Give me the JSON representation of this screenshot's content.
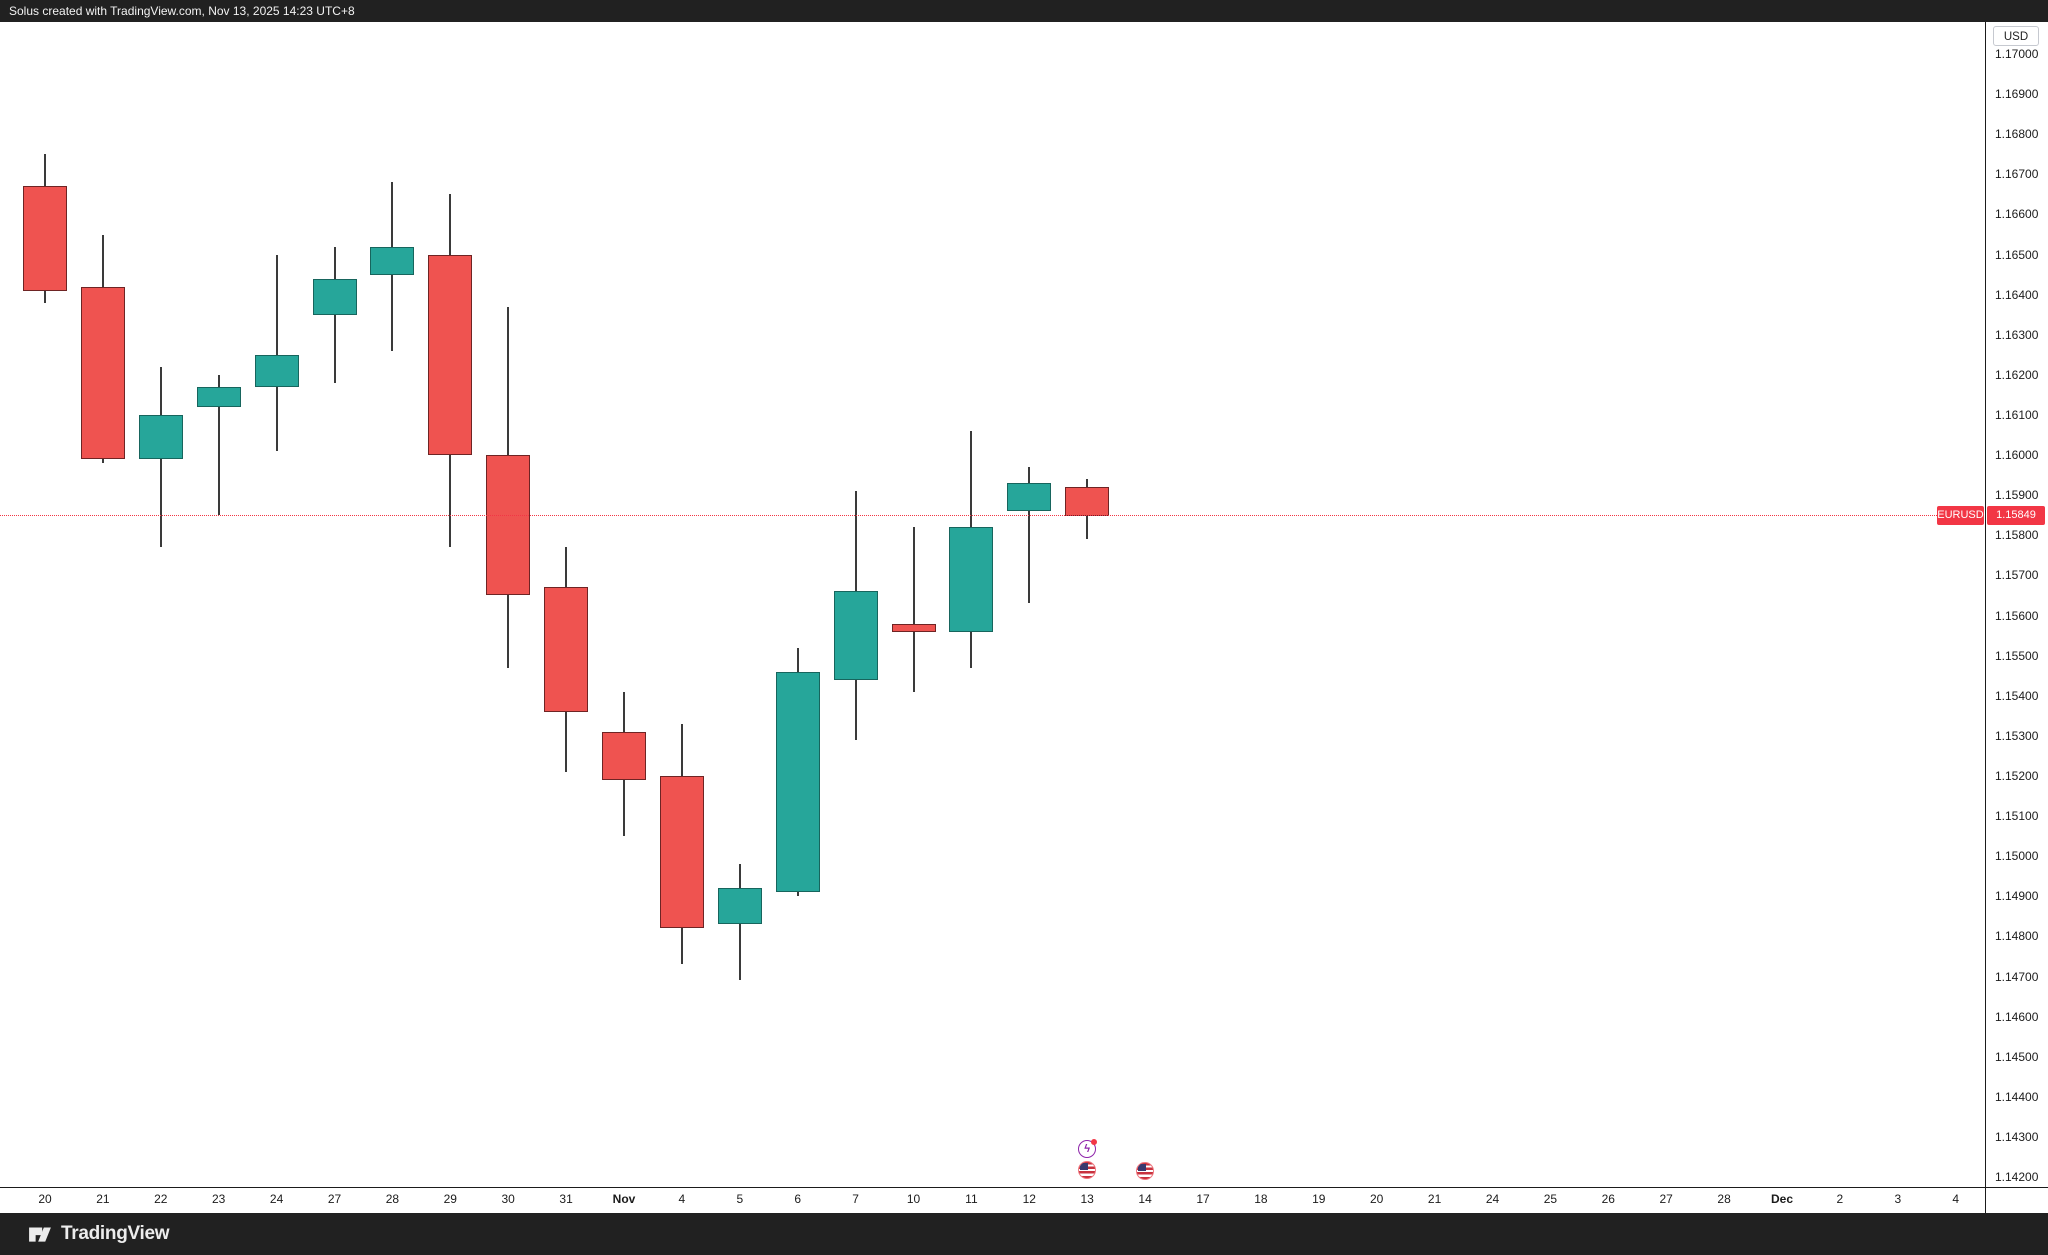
{
  "topbar": {
    "caption": "Solus created with TradingView.com, Nov 13, 2025 14:23 UTC+8"
  },
  "footer": {
    "brand": "TradingView"
  },
  "price_scale": {
    "currency_button": "USD"
  },
  "price_label": {
    "symbol": "EURUSD",
    "value": "1.15849"
  },
  "colors": {
    "up_body": "#26a69a",
    "up_border": "#17655d",
    "down_body": "#ef5350",
    "down_border": "#6e2424",
    "wick": "#3a3a3a",
    "price_line": "#f23645",
    "chrome_bar": "#212121",
    "axis_text": "#1b1b1b"
  },
  "chart_data": {
    "type": "candlestick",
    "symbol": "EURUSD",
    "quote_currency": "USD",
    "current_price": 1.15849,
    "grid": false,
    "ylim": [
      1.142,
      1.17
    ],
    "price_axis_labels": [
      "1.17000",
      "1.16900",
      "1.16800",
      "1.16700",
      "1.16600",
      "1.16500",
      "1.16400",
      "1.16300",
      "1.16200",
      "1.16100",
      "1.16000",
      "1.15900",
      "1.15800",
      "1.15700",
      "1.15600",
      "1.15500",
      "1.15400",
      "1.15300",
      "1.15200",
      "1.15100",
      "1.15000",
      "1.14900",
      "1.14800",
      "1.14700",
      "1.14600",
      "1.14500",
      "1.14400",
      "1.14300",
      "1.14200"
    ],
    "time_axis_labels": [
      "20",
      "21",
      "22",
      "23",
      "24",
      "27",
      "28",
      "29",
      "30",
      "31",
      "Nov",
      "4",
      "5",
      "6",
      "7",
      "10",
      "11",
      "12",
      "13",
      "14",
      "17",
      "18",
      "19",
      "20",
      "21",
      "24",
      "25",
      "26",
      "27",
      "28",
      "Dec",
      "2",
      "3",
      "4"
    ],
    "candles": [
      {
        "time": "20",
        "open": 1.1667,
        "high": 1.1675,
        "low": 1.1638,
        "close": 1.1641
      },
      {
        "time": "21",
        "open": 1.1642,
        "high": 1.1655,
        "low": 1.1598,
        "close": 1.1599
      },
      {
        "time": "22",
        "open": 1.1599,
        "high": 1.1622,
        "low": 1.1577,
        "close": 1.161
      },
      {
        "time": "23",
        "open": 1.1612,
        "high": 1.162,
        "low": 1.1585,
        "close": 1.1617
      },
      {
        "time": "24",
        "open": 1.1617,
        "high": 1.165,
        "low": 1.1601,
        "close": 1.1625
      },
      {
        "time": "27",
        "open": 1.1635,
        "high": 1.1652,
        "low": 1.1618,
        "close": 1.1644
      },
      {
        "time": "28",
        "open": 1.1645,
        "high": 1.1668,
        "low": 1.1626,
        "close": 1.1652
      },
      {
        "time": "29",
        "open": 1.165,
        "high": 1.1665,
        "low": 1.1577,
        "close": 1.16
      },
      {
        "time": "30",
        "open": 1.16,
        "high": 1.1637,
        "low": 1.1547,
        "close": 1.1565
      },
      {
        "time": "31",
        "open": 1.1567,
        "high": 1.1577,
        "low": 1.1521,
        "close": 1.1536
      },
      {
        "time": "Nov",
        "open": 1.1531,
        "high": 1.1541,
        "low": 1.1505,
        "close": 1.1519
      },
      {
        "time": "4",
        "open": 1.152,
        "high": 1.1533,
        "low": 1.1473,
        "close": 1.1482
      },
      {
        "time": "5",
        "open": 1.1483,
        "high": 1.1498,
        "low": 1.1469,
        "close": 1.1492
      },
      {
        "time": "6",
        "open": 1.1491,
        "high": 1.1552,
        "low": 1.149,
        "close": 1.1546
      },
      {
        "time": "7",
        "open": 1.1544,
        "high": 1.1591,
        "low": 1.1529,
        "close": 1.1566
      },
      {
        "time": "10",
        "open": 1.1558,
        "high": 1.1582,
        "low": 1.1541,
        "close": 1.1556
      },
      {
        "time": "11",
        "open": 1.1556,
        "high": 1.1606,
        "low": 1.1547,
        "close": 1.1582
      },
      {
        "time": "12",
        "open": 1.1586,
        "high": 1.1597,
        "low": 1.1563,
        "close": 1.1593
      },
      {
        "time": "13",
        "open": 1.1592,
        "high": 1.1594,
        "low": 1.1579,
        "close": 1.15849
      }
    ],
    "events": [
      {
        "time": "13",
        "time_index": 18,
        "icons": [
          "economic-event-icon",
          "us-flag-icon"
        ]
      },
      {
        "time": "14",
        "time_index": 19,
        "icons": [
          "us-flag-icon"
        ]
      }
    ]
  }
}
